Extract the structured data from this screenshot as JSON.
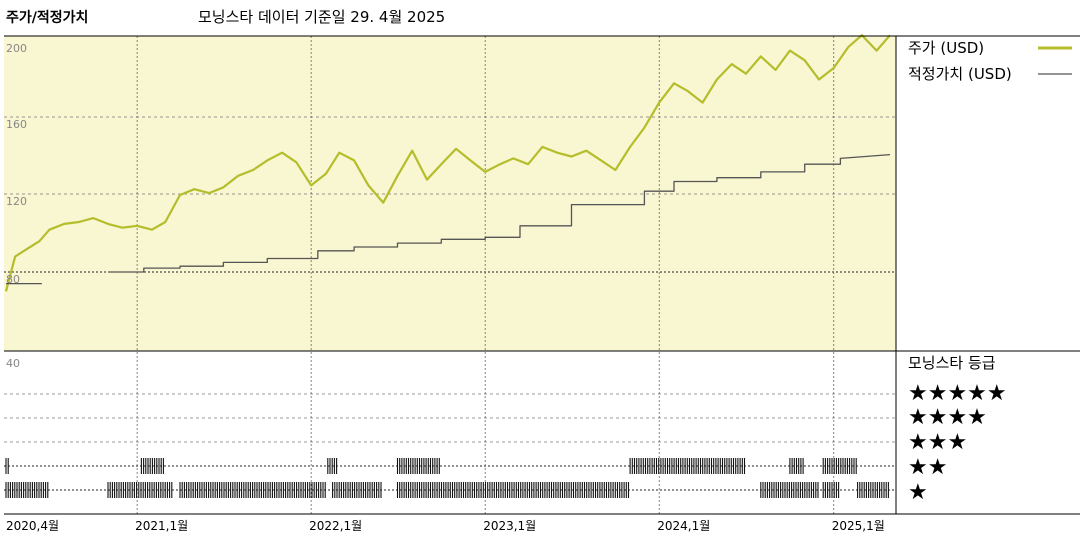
{
  "chart_data": {
    "type": "line",
    "title": "모닝스타 데이터 기준일 29. 4월 2025",
    "ylabel": "주가/적정가치",
    "ylim": [
      60,
      210
    ],
    "yticks": [
      "200",
      "160",
      "120",
      "80"
    ],
    "xticks": [
      "2020,4월",
      "2021,1월",
      "2022,1월",
      "2023,1월",
      "2024,1월",
      "2025,1월"
    ],
    "series": [
      {
        "name": "주가 (USD)",
        "color": "#b5bd2a",
        "points": [
          [
            "2020-04-01",
            70
          ],
          [
            "2020-04-20",
            88
          ],
          [
            "2020-05-15",
            92
          ],
          [
            "2020-06-10",
            96
          ],
          [
            "2020-07-01",
            102
          ],
          [
            "2020-08-01",
            105
          ],
          [
            "2020-09-01",
            106
          ],
          [
            "2020-10-01",
            108
          ],
          [
            "2020-11-01",
            105
          ],
          [
            "2020-12-01",
            103
          ],
          [
            "2021-01-01",
            104
          ],
          [
            "2021-02-01",
            102
          ],
          [
            "2021-03-01",
            106
          ],
          [
            "2021-04-01",
            120
          ],
          [
            "2021-05-01",
            123
          ],
          [
            "2021-06-01",
            121
          ],
          [
            "2021-07-01",
            124
          ],
          [
            "2021-08-01",
            130
          ],
          [
            "2021-09-01",
            133
          ],
          [
            "2021-10-01",
            138
          ],
          [
            "2021-11-01",
            142
          ],
          [
            "2021-12-01",
            137
          ],
          [
            "2022-01-01",
            125
          ],
          [
            "2022-02-01",
            131
          ],
          [
            "2022-03-01",
            142
          ],
          [
            "2022-04-01",
            138
          ],
          [
            "2022-05-01",
            125
          ],
          [
            "2022-06-01",
            116
          ],
          [
            "2022-07-01",
            130
          ],
          [
            "2022-08-01",
            143
          ],
          [
            "2022-09-01",
            128
          ],
          [
            "2022-10-01",
            136
          ],
          [
            "2022-11-01",
            144
          ],
          [
            "2022-12-01",
            138
          ],
          [
            "2023-01-01",
            132
          ],
          [
            "2023-02-01",
            136
          ],
          [
            "2023-03-01",
            139
          ],
          [
            "2023-04-01",
            136
          ],
          [
            "2023-05-01",
            145
          ],
          [
            "2023-06-01",
            142
          ],
          [
            "2023-07-01",
            140
          ],
          [
            "2023-08-01",
            143
          ],
          [
            "2023-09-01",
            138
          ],
          [
            "2023-10-01",
            133
          ],
          [
            "2023-11-01",
            145
          ],
          [
            "2023-12-01",
            155
          ],
          [
            "2024-01-01",
            168
          ],
          [
            "2024-02-01",
            178
          ],
          [
            "2024-03-01",
            174
          ],
          [
            "2024-04-01",
            168
          ],
          [
            "2024-05-01",
            180
          ],
          [
            "2024-06-01",
            188
          ],
          [
            "2024-07-01",
            183
          ],
          [
            "2024-08-01",
            192
          ],
          [
            "2024-09-01",
            185
          ],
          [
            "2024-10-01",
            195
          ],
          [
            "2024-11-01",
            190
          ],
          [
            "2024-12-01",
            180
          ],
          [
            "2025-01-01",
            186
          ],
          [
            "2025-02-01",
            197
          ],
          [
            "2025-03-01",
            203
          ],
          [
            "2025-04-01",
            195
          ],
          [
            "2025-04-29",
            203
          ]
        ]
      },
      {
        "name": "적정가치 (USD)",
        "color": "#555555",
        "points": [
          [
            "2020-04-01",
            74
          ],
          [
            "2020-06-15",
            74
          ],
          null,
          [
            "2020-11-01",
            80
          ],
          [
            "2021-01-15",
            80
          ],
          [
            "2021-01-15",
            82
          ],
          [
            "2021-04-01",
            82
          ],
          [
            "2021-04-01",
            83
          ],
          [
            "2021-07-01",
            83
          ],
          [
            "2021-07-01",
            85
          ],
          [
            "2021-10-01",
            85
          ],
          [
            "2021-10-01",
            87
          ],
          [
            "2022-01-15",
            87
          ],
          [
            "2022-01-15",
            91
          ],
          [
            "2022-04-01",
            91
          ],
          [
            "2022-04-01",
            93
          ],
          [
            "2022-07-01",
            93
          ],
          [
            "2022-07-01",
            95
          ],
          [
            "2022-10-01",
            95
          ],
          [
            "2022-10-01",
            97
          ],
          [
            "2023-01-01",
            97
          ],
          [
            "2023-01-01",
            98
          ],
          [
            "2023-03-15",
            98
          ],
          [
            "2023-03-15",
            104
          ],
          [
            "2023-07-01",
            104
          ],
          [
            "2023-07-01",
            115
          ],
          [
            "2023-12-01",
            115
          ],
          [
            "2023-12-01",
            122
          ],
          [
            "2024-02-01",
            122
          ],
          [
            "2024-02-01",
            127
          ],
          [
            "2024-05-01",
            127
          ],
          [
            "2024-05-01",
            129
          ],
          [
            "2024-08-01",
            129
          ],
          [
            "2024-08-01",
            132
          ],
          [
            "2024-11-01",
            132
          ],
          [
            "2024-11-01",
            136
          ],
          [
            "2025-01-15",
            136
          ],
          [
            "2025-01-15",
            139
          ],
          [
            "2025-04-29",
            141
          ]
        ]
      }
    ],
    "rating_panel": {
      "title": "모닝스타 등급",
      "ytick": "40",
      "levels": [
        "★★★★★",
        "★★★★",
        "★★★",
        "★★",
        "★"
      ],
      "periods": [
        {
          "stars": 1,
          "from": "2020-04-01",
          "to": "2020-07-01"
        },
        {
          "stars": 2,
          "from": "2020-04-01",
          "to": "2020-04-10"
        },
        {
          "stars": 1,
          "from": "2020-11-01",
          "to": "2021-03-15"
        },
        {
          "stars": 2,
          "from": "2021-01-10",
          "to": "2021-03-01"
        },
        {
          "stars": 1,
          "from": "2021-04-01",
          "to": "2022-02-01"
        },
        {
          "stars": 2,
          "from": "2022-02-05",
          "to": "2022-02-25"
        },
        {
          "stars": 1,
          "from": "2022-02-15",
          "to": "2022-06-01"
        },
        {
          "stars": 2,
          "from": "2022-07-01",
          "to": "2022-10-01"
        },
        {
          "stars": 1,
          "from": "2022-07-01",
          "to": "2023-11-01"
        },
        {
          "stars": 2,
          "from": "2023-11-01",
          "to": "2024-07-01"
        },
        {
          "stars": 1,
          "from": "2024-08-01",
          "to": "2024-12-01"
        },
        {
          "stars": 2,
          "from": "2024-10-01",
          "to": "2024-11-01"
        },
        {
          "stars": 1,
          "from": "2024-12-10",
          "to": "2025-01-15"
        },
        {
          "stars": 2,
          "from": "2024-12-10",
          "to": "2025-02-20"
        },
        {
          "stars": 1,
          "from": "2025-02-20",
          "to": "2025-04-29"
        }
      ]
    },
    "grid": true,
    "legend": "right"
  }
}
